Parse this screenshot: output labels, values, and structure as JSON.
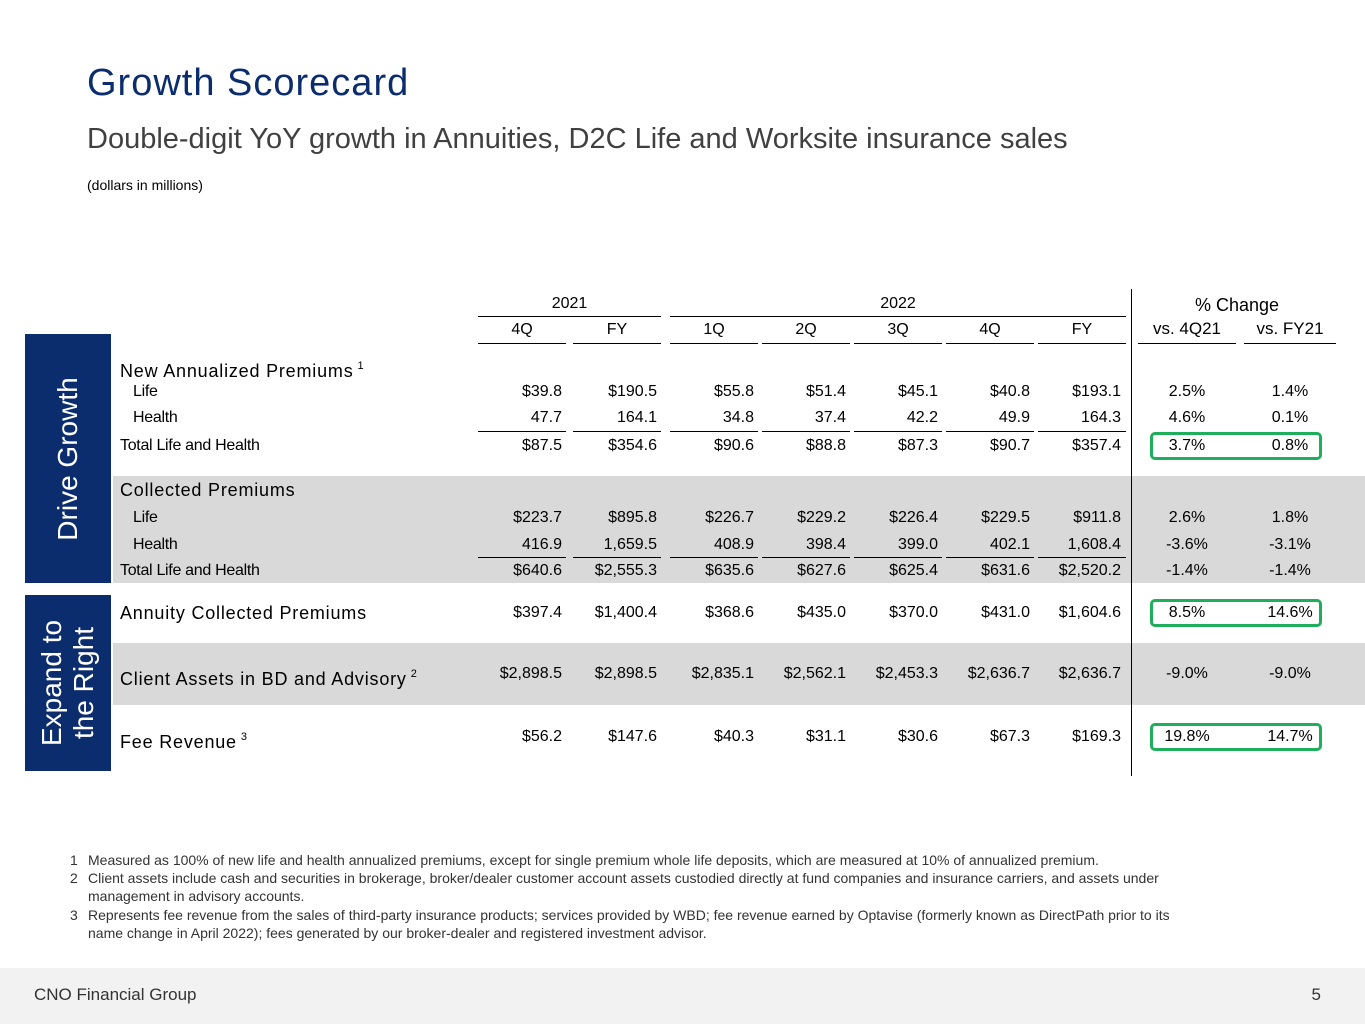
{
  "header": {
    "title": "Growth Scorecard",
    "subtitle": "Double-digit YoY growth in Annuities, D2C Life and Worksite insurance sales",
    "note": "(dollars in millions)"
  },
  "side_labels": [
    [
      "Drive Growth"
    ],
    [
      "Expand to",
      "the Right"
    ]
  ],
  "table": {
    "group_headers": [
      "2021",
      "2022",
      "% Change"
    ],
    "columns": [
      "4Q",
      "FY",
      "1Q",
      "2Q",
      "3Q",
      "4Q",
      "FY",
      "vs. 4Q21",
      "vs. FY21"
    ],
    "rows": [
      {
        "label": "New Annualized Premiums",
        "sup": "1"
      },
      {
        "label": "Life",
        "values": [
          "$39.8",
          "$190.5",
          "$55.8",
          "$51.4",
          "$45.1",
          "$40.8",
          "$193.1",
          "2.5%",
          "1.4%"
        ]
      },
      {
        "label": "Health",
        "values": [
          "47.7",
          "164.1",
          "34.8",
          "37.4",
          "42.2",
          "49.9",
          "164.3",
          "4.6%",
          "0.1%"
        ]
      },
      {
        "label": "Total Life and Health",
        "values": [
          "$87.5",
          "$354.6",
          "$90.6",
          "$88.8",
          "$87.3",
          "$90.7",
          "$357.4",
          "3.7%",
          "0.8%"
        ]
      },
      {
        "label": "Collected Premiums"
      },
      {
        "label": "Life",
        "values": [
          "$223.7",
          "$895.8",
          "$226.7",
          "$229.2",
          "$226.4",
          "$229.5",
          "$911.8",
          "2.6%",
          "1.8%"
        ]
      },
      {
        "label": "Health",
        "values": [
          "416.9",
          "1,659.5",
          "408.9",
          "398.4",
          "399.0",
          "402.1",
          "1,608.4",
          "-3.6%",
          "-3.1%"
        ]
      },
      {
        "label": "Total Life and Health",
        "values": [
          "$640.6",
          "$2,555.3",
          "$635.6",
          "$627.6",
          "$625.4",
          "$631.6",
          "$2,520.2",
          "-1.4%",
          "-1.4%"
        ]
      },
      {
        "label": "Annuity Collected Premiums",
        "values": [
          "$397.4",
          "$1,400.4",
          "$368.6",
          "$435.0",
          "$370.0",
          "$431.0",
          "$1,604.6",
          "8.5%",
          "14.6%"
        ]
      },
      {
        "label": "Client Assets in BD and Advisory",
        "sup": "2",
        "values": [
          "$2,898.5",
          "$2,898.5",
          "$2,835.1",
          "$2,562.1",
          "$2,453.3",
          "$2,636.7",
          "$2,636.7",
          "-9.0%",
          "-9.0%"
        ]
      },
      {
        "label": "Fee Revenue",
        "sup": "3",
        "values": [
          "$56.2",
          "$147.6",
          "$40.3",
          "$31.1",
          "$30.6",
          "$67.3",
          "$169.3",
          "19.8%",
          "14.7%"
        ]
      }
    ]
  },
  "footnotes": [
    {
      "number": "1",
      "text": "Measured as 100% of new life and health annualized premiums, except for single premium whole life deposits, which are measured at 10% of annualized premium."
    },
    {
      "number": "2",
      "text": "Client assets include cash and securities in brokerage, broker/dealer customer account assets custodied directly at fund companies and insurance carriers, and assets under management in advisory accounts."
    },
    {
      "number": "3",
      "text": "Represents fee revenue from the sales of third-party insurance products; services provided by WBD; fee revenue earned by Optavise (formerly known as DirectPath prior to its name change in April 2022); fees generated by our broker-dealer and registered investment advisor."
    }
  ],
  "footer": {
    "company": "CNO Financial Group",
    "page": "5"
  }
}
